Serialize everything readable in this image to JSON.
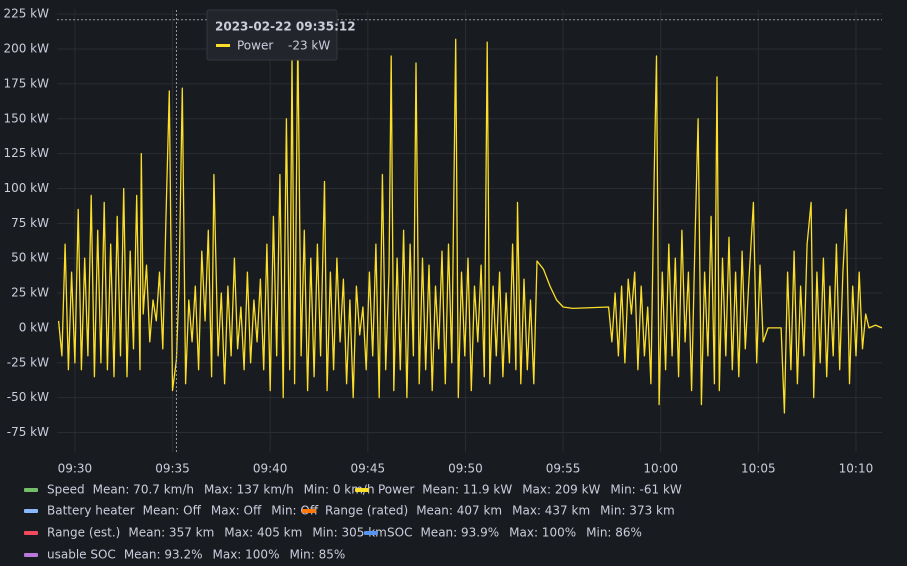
{
  "chart_data": {
    "type": "line",
    "xlim": [
      "09:29:05",
      "10:11:20"
    ],
    "ylim": [
      -89,
      228
    ],
    "xticks": [
      "09:30",
      "09:35",
      "09:40",
      "09:45",
      "09:50",
      "09:55",
      "10:00",
      "10:05",
      "10:10"
    ],
    "yticks": [
      {
        "value": 225,
        "label": "225 kW"
      },
      {
        "value": 200,
        "label": "200 kW"
      },
      {
        "value": 175,
        "label": "175 kW"
      },
      {
        "value": 150,
        "label": "150 kW"
      },
      {
        "value": 125,
        "label": "125 kW"
      },
      {
        "value": 100,
        "label": "100 kW"
      },
      {
        "value": 75,
        "label": "75 kW"
      },
      {
        "value": 50,
        "label": "50 kW"
      },
      {
        "value": 25,
        "label": "25 kW"
      },
      {
        "value": 0,
        "label": "0 kW"
      },
      {
        "value": -25,
        "label": "-25 kW"
      },
      {
        "value": -50,
        "label": "-50 kW"
      },
      {
        "value": -75,
        "label": "-75 kW"
      }
    ],
    "grid": true,
    "crosshair": {
      "x": "09:35:12",
      "y": 221
    },
    "tooltip": {
      "time": "2023-02-22 09:35:12",
      "series": "Power",
      "value": "-23 kW"
    },
    "x": [
      "09:29:10",
      "09:29:20",
      "09:29:30",
      "09:29:40",
      "09:29:50",
      "09:30:00",
      "09:30:10",
      "09:30:20",
      "09:30:30",
      "09:30:40",
      "09:30:50",
      "09:31:00",
      "09:31:10",
      "09:31:20",
      "09:31:30",
      "09:31:40",
      "09:31:50",
      "09:32:00",
      "09:32:10",
      "09:32:20",
      "09:32:30",
      "09:32:40",
      "09:32:50",
      "09:33:00",
      "09:33:10",
      "09:33:20",
      "09:33:24",
      "09:33:30",
      "09:33:40",
      "09:33:50",
      "09:34:00",
      "09:34:10",
      "09:34:20",
      "09:34:30",
      "09:34:40",
      "09:34:50",
      "09:35:00",
      "09:35:12",
      "09:35:20",
      "09:35:30",
      "09:35:40",
      "09:35:50",
      "09:36:00",
      "09:36:10",
      "09:36:20",
      "09:36:30",
      "09:36:40",
      "09:36:50",
      "09:37:00",
      "09:37:07",
      "09:37:20",
      "09:37:30",
      "09:37:40",
      "09:37:50",
      "09:38:00",
      "09:38:10",
      "09:38:20",
      "09:38:30",
      "09:38:40",
      "09:38:50",
      "09:39:00",
      "09:39:10",
      "09:39:20",
      "09:39:30",
      "09:39:40",
      "09:39:50",
      "09:40:00",
      "09:40:10",
      "09:40:20",
      "09:40:30",
      "09:40:40",
      "09:40:50",
      "09:41:00",
      "09:41:07",
      "09:41:15",
      "09:41:25",
      "09:41:35",
      "09:41:45",
      "09:41:55",
      "09:42:05",
      "09:42:15",
      "09:42:25",
      "09:42:35",
      "09:42:47",
      "09:42:55",
      "09:43:05",
      "09:43:15",
      "09:43:25",
      "09:43:35",
      "09:43:45",
      "09:43:55",
      "09:44:05",
      "09:44:15",
      "09:44:25",
      "09:44:35",
      "09:44:45",
      "09:44:55",
      "09:45:05",
      "09:45:15",
      "09:45:25",
      "09:45:35",
      "09:45:45",
      "09:45:55",
      "09:46:05",
      "09:46:12",
      "09:46:20",
      "09:46:30",
      "09:46:40",
      "09:46:50",
      "09:47:00",
      "09:47:10",
      "09:47:20",
      "09:47:28",
      "09:47:38",
      "09:47:48",
      "09:47:58",
      "09:48:08",
      "09:48:18",
      "09:48:28",
      "09:48:38",
      "09:48:48",
      "09:48:58",
      "09:49:08",
      "09:49:18",
      "09:49:30",
      "09:49:38",
      "09:49:48",
      "09:49:58",
      "09:50:08",
      "09:50:18",
      "09:50:28",
      "09:50:38",
      "09:50:48",
      "09:50:58",
      "09:51:07",
      "09:51:15",
      "09:51:25",
      "09:51:35",
      "09:51:45",
      "09:51:55",
      "09:52:05",
      "09:52:15",
      "09:52:25",
      "09:52:35",
      "09:52:40",
      "09:52:50",
      "09:53:00",
      "09:53:10",
      "09:53:20",
      "09:53:30",
      "09:53:40",
      "09:54:00",
      "09:54:20",
      "09:54:40",
      "09:55:00",
      "09:55:30",
      "09:57:20",
      "09:57:30",
      "09:57:40",
      "09:57:50",
      "09:58:00",
      "09:58:10",
      "09:58:20",
      "09:58:30",
      "09:58:40",
      "09:58:50",
      "09:59:00",
      "09:59:10",
      "09:59:20",
      "09:59:30",
      "09:59:40",
      "09:59:47",
      "09:59:55",
      "10:00:05",
      "10:00:15",
      "10:00:25",
      "10:00:35",
      "10:00:45",
      "10:00:55",
      "10:01:05",
      "10:01:15",
      "10:01:25",
      "10:01:35",
      "10:01:45",
      "10:01:55",
      "10:02:05",
      "10:02:15",
      "10:02:25",
      "10:02:35",
      "10:02:45",
      "10:02:53",
      "10:03:00",
      "10:03:10",
      "10:03:20",
      "10:03:30",
      "10:03:40",
      "10:03:50",
      "10:04:00",
      "10:04:10",
      "10:04:20",
      "10:04:30",
      "10:04:45",
      "10:04:55",
      "10:05:05",
      "10:05:15",
      "10:05:30",
      "10:06:10",
      "10:06:20",
      "10:06:30",
      "10:06:40",
      "10:06:50",
      "10:07:00",
      "10:07:10",
      "10:07:20",
      "10:07:30",
      "10:07:42",
      "10:07:50",
      "10:08:00",
      "10:08:10",
      "10:08:20",
      "10:08:30",
      "10:08:40",
      "10:08:50",
      "10:09:00",
      "10:09:10",
      "10:09:20",
      "10:09:30",
      "10:09:40",
      "10:09:50",
      "10:10:00",
      "10:10:10",
      "10:10:20",
      "10:10:30",
      "10:10:40",
      "10:11:00",
      "10:11:20"
    ],
    "series": [
      {
        "name": "Speed",
        "color": "#73bf69",
        "stats": [
          "Mean: 70.7 km/h",
          "Max: 137 km/h",
          "Min: 0 km/h"
        ]
      },
      {
        "name": "Power",
        "color": "#fade2a",
        "stats": [
          "Mean: 11.9 kW",
          "Max: 209 kW",
          "Min: -61 kW"
        ],
        "values": [
          5,
          -20,
          60,
          -30,
          40,
          -25,
          85,
          -30,
          50,
          -20,
          95,
          -35,
          70,
          -25,
          90,
          -30,
          60,
          -35,
          80,
          -20,
          100,
          -35,
          55,
          -15,
          95,
          -30,
          125,
          10,
          45,
          -10,
          20,
          5,
          40,
          -15,
          80,
          170,
          -45,
          -23,
          30,
          172,
          -40,
          20,
          -10,
          30,
          -30,
          55,
          5,
          70,
          -35,
          110,
          -20,
          25,
          -40,
          30,
          -20,
          50,
          -15,
          15,
          -30,
          40,
          -25,
          20,
          -10,
          35,
          -30,
          60,
          -45,
          80,
          -20,
          110,
          -50,
          150,
          -30,
          195,
          -40,
          210,
          -20,
          70,
          -45,
          50,
          -35,
          60,
          -20,
          105,
          -45,
          40,
          -30,
          50,
          -10,
          35,
          -40,
          20,
          -50,
          30,
          -5,
          15,
          -30,
          40,
          -20,
          60,
          -50,
          110,
          -30,
          40,
          195,
          -45,
          50,
          -30,
          70,
          -50,
          60,
          -20,
          190,
          -40,
          50,
          -30,
          45,
          -45,
          30,
          -15,
          55,
          -40,
          60,
          -25,
          207,
          -50,
          40,
          -20,
          50,
          -45,
          30,
          -10,
          45,
          -35,
          205,
          -40,
          30,
          -20,
          40,
          -35,
          25,
          -25,
          60,
          -30,
          90,
          -40,
          35,
          -30,
          20,
          -40,
          48,
          42,
          30,
          20,
          15,
          14,
          15,
          -10,
          25,
          -20,
          30,
          -25,
          35,
          10,
          40,
          -30,
          30,
          -20,
          15,
          -40,
          110,
          195,
          -55,
          40,
          -30,
          60,
          -20,
          50,
          -35,
          70,
          -10,
          40,
          -45,
          60,
          150,
          -55,
          40,
          -20,
          80,
          -40,
          180,
          -45,
          50,
          -20,
          65,
          -30,
          40,
          -35,
          55,
          -15,
          30,
          90,
          -25,
          45,
          -10,
          0,
          0,
          -61,
          40,
          -30,
          55,
          -40,
          30,
          -20,
          60,
          90,
          -50,
          40,
          -25,
          50,
          -35,
          30,
          -20,
          60,
          -30,
          40,
          85,
          -40,
          30,
          -20,
          40,
          -15,
          10,
          0,
          2,
          0
        ]
      },
      {
        "name": "Battery heater",
        "color": "#8ab8ff",
        "stats": [
          "Mean: Off",
          "Max: Off",
          "Min: Off"
        ]
      },
      {
        "name": "Range (rated)",
        "color": "#ff780a",
        "stats": [
          "Mean: 407 km",
          "Max: 437 km",
          "Min: 373 km"
        ]
      },
      {
        "name": "Range (est.)",
        "color": "#f2495c",
        "stats": [
          "Mean: 357 km",
          "Max: 405 km",
          "Min: 305 km"
        ]
      },
      {
        "name": "SOC",
        "color": "#5794f2",
        "stats": [
          "Mean: 93.9%",
          "Max: 100%",
          "Min: 86%"
        ]
      },
      {
        "name": "usable SOC",
        "color": "#b877d9",
        "stats": [
          "Mean: 93.2%",
          "Max: 100%",
          "Min: 85%"
        ]
      }
    ]
  }
}
